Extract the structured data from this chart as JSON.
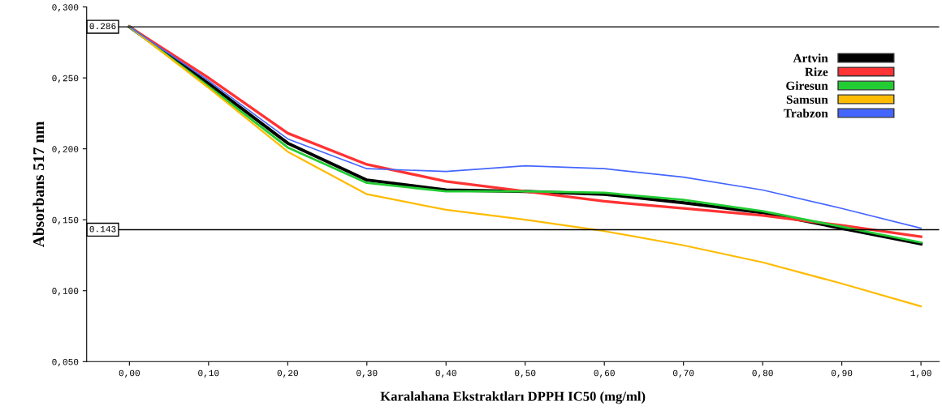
{
  "chart_data": {
    "type": "line",
    "xlabel": "Karalahana Ekstraktları DPPH IC50 (mg/ml)",
    "ylabel": "Absorbans 517 nm",
    "x": [
      0,
      0.1,
      0.2,
      0.3,
      0.4,
      0.5,
      0.6,
      0.7,
      0.8,
      0.9,
      1.0
    ],
    "series": [
      {
        "name": "Artvin",
        "color": "#000000",
        "values": [
          0.286,
          0.246,
          0.204,
          0.178,
          0.171,
          0.17,
          0.168,
          0.162,
          0.155,
          0.144,
          0.133
        ]
      },
      {
        "name": "Rize",
        "color": "#ff3333",
        "values": [
          0.286,
          0.25,
          0.211,
          0.189,
          0.177,
          0.17,
          0.163,
          0.158,
          0.153,
          0.146,
          0.138
        ]
      },
      {
        "name": "Giresun",
        "color": "#22cc33",
        "values": [
          0.286,
          0.244,
          0.201,
          0.176,
          0.17,
          0.17,
          0.169,
          0.164,
          0.156,
          0.145,
          0.134
        ]
      },
      {
        "name": "Samsun",
        "color": "#ffbb00",
        "values": [
          0.286,
          0.243,
          0.198,
          0.168,
          0.157,
          0.15,
          0.142,
          0.132,
          0.12,
          0.105,
          0.089
        ]
      },
      {
        "name": "Trabzon",
        "color": "#4466ff",
        "values": [
          0.286,
          0.248,
          0.207,
          0.186,
          0.184,
          0.188,
          0.186,
          0.18,
          0.171,
          0.158,
          0.144
        ]
      }
    ],
    "xlim": [
      -0.054,
      1.023
    ],
    "ylim": [
      0.05,
      0.3
    ],
    "xticks": [
      {
        "value": 0,
        "label": "0,00"
      },
      {
        "value": 0.1,
        "label": "0,10"
      },
      {
        "value": 0.2,
        "label": "0,20"
      },
      {
        "value": 0.3,
        "label": "0,30"
      },
      {
        "value": 0.4,
        "label": "0,40"
      },
      {
        "value": 0.5,
        "label": "0,50"
      },
      {
        "value": 0.6,
        "label": "0,60"
      },
      {
        "value": 0.7,
        "label": "0,70"
      },
      {
        "value": 0.8,
        "label": "0,80"
      },
      {
        "value": 0.9,
        "label": "0,90"
      },
      {
        "value": 1.0,
        "label": "1,00"
      }
    ],
    "yticks": [
      {
        "value": 0.05,
        "label": "0,050"
      },
      {
        "value": 0.1,
        "label": "0,100"
      },
      {
        "value": 0.15,
        "label": "0,150"
      },
      {
        "value": 0.2,
        "label": "0,200"
      },
      {
        "value": 0.25,
        "label": "0,250"
      },
      {
        "value": 0.3,
        "label": "0,300"
      }
    ],
    "ref_lines": [
      {
        "axis": "y",
        "value": 0.286,
        "label": "0.286",
        "color": "#000000"
      },
      {
        "axis": "y",
        "value": 0.143,
        "label": "0.143",
        "color": "#000000"
      }
    ],
    "legend": "top right",
    "grid": false,
    "marker": "none",
    "line_style": "solid"
  }
}
